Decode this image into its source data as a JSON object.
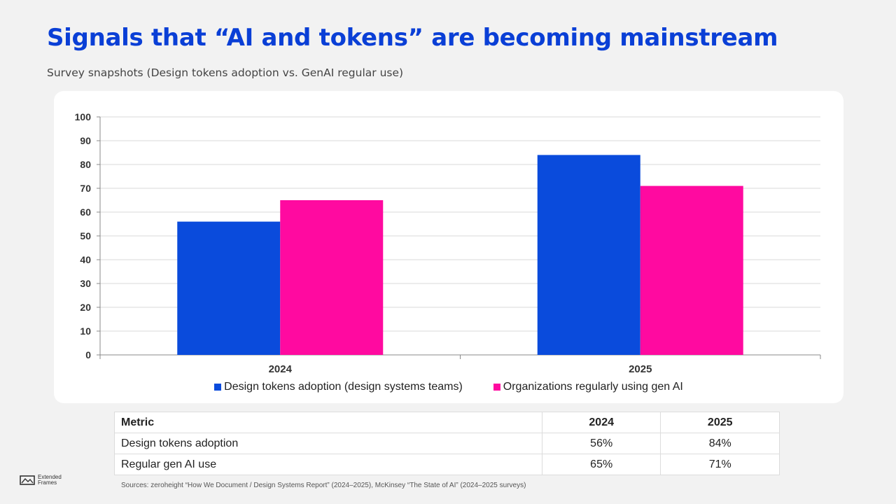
{
  "header": {
    "title": "Signals that “AI and tokens” are becoming mainstream",
    "subtitle": "Survey snapshots (Design tokens adoption vs. GenAI regular use)"
  },
  "chart_data": {
    "type": "bar",
    "categories": [
      "2024",
      "2025"
    ],
    "series": [
      {
        "name": "Design tokens adoption (design systems teams)",
        "values": [
          56,
          84
        ],
        "color": "#0a4bdc"
      },
      {
        "name": "Organizations regularly using gen AI",
        "values": [
          65,
          71
        ],
        "color": "#ff0aa0"
      }
    ],
    "ylim": [
      0,
      100
    ],
    "yticks": [
      0,
      10,
      20,
      30,
      40,
      50,
      60,
      70,
      80,
      90,
      100
    ],
    "grid": true,
    "legend": "bottom"
  },
  "table": {
    "headers": [
      "Metric",
      "2024",
      "2025"
    ],
    "rows": [
      [
        "Design tokens adoption",
        "56%",
        "84%"
      ],
      [
        "Regular gen AI use",
        "65%",
        "71%"
      ]
    ]
  },
  "footer": {
    "sources": "Sources: zeroheight “How We Document / Design Systems Report” (2024–2025), McKinsey “The State of AI” (2024–2025 surveys)",
    "logo_line1": "Extended",
    "logo_line2": "Frames"
  }
}
